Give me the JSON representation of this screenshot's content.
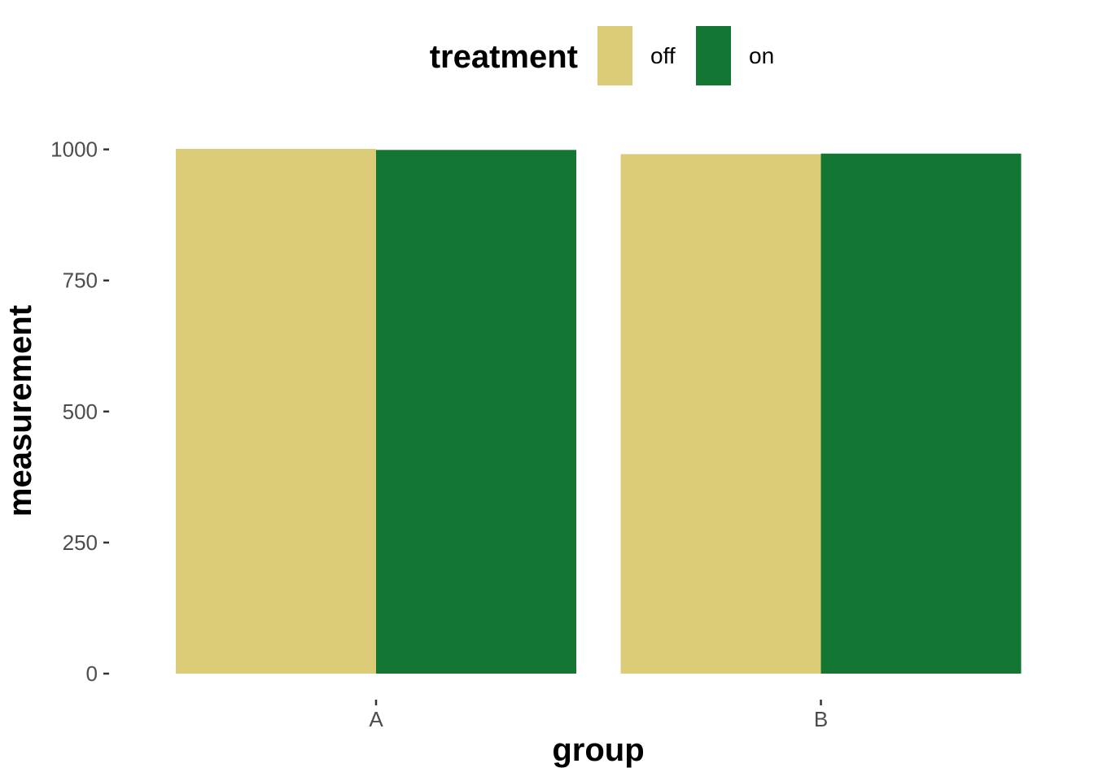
{
  "chart_data": {
    "type": "bar",
    "categories": [
      "A",
      "B"
    ],
    "series": [
      {
        "name": "off",
        "color": "#DCCC78",
        "values": [
          1001,
          991
        ]
      },
      {
        "name": "on",
        "color": "#137733",
        "values": [
          999,
          992
        ]
      }
    ],
    "xlabel": "group",
    "ylabel": "measurement",
    "yticks": [
      0,
      250,
      500,
      750,
      1000
    ],
    "ylim": [
      0,
      1001
    ],
    "legend": {
      "title": "treatment",
      "position": "top"
    },
    "grid": false
  }
}
